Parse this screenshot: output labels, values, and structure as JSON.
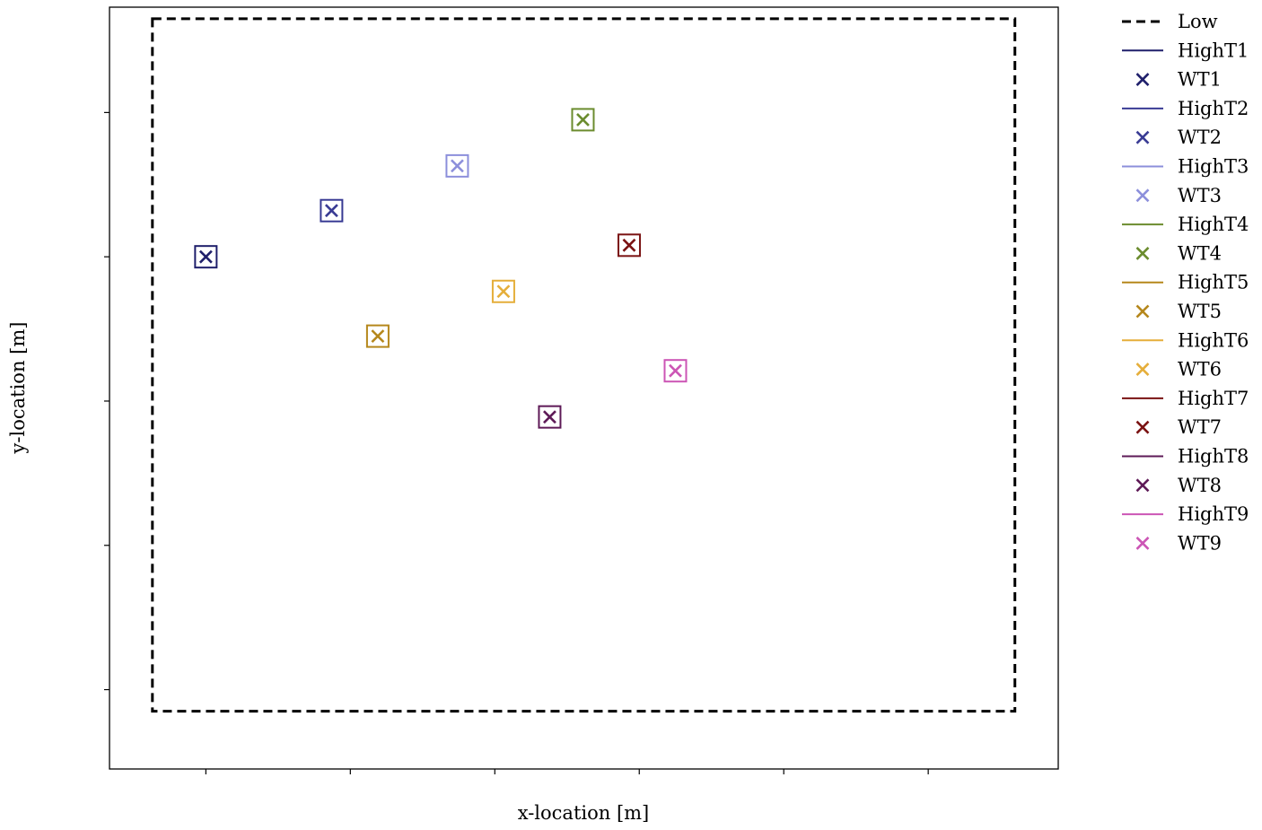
{
  "chart_data": {
    "type": "scatter",
    "title": "",
    "xlabel": "x-location [m]",
    "ylabel": "y-location [m]",
    "xlim": [
      -0.667,
      5.9
    ],
    "ylim": [
      -1.55,
      3.73
    ],
    "xticks": [
      0,
      1,
      2,
      3,
      4,
      5
    ],
    "yticks": [
      -1,
      0,
      1,
      2,
      3
    ],
    "tick_labels_shown": false,
    "grid": false,
    "legend_position": "outside-right",
    "low_domain": {
      "name": "Low",
      "x0": -0.37,
      "x1": 5.6,
      "y0": -1.15,
      "y1": 3.65,
      "color": "#000000",
      "style": "dashed"
    },
    "series": [
      {
        "name": "WT1",
        "domain_name": "HighT1",
        "x": 0.0,
        "y": 2.0,
        "color": "#1f1f6b"
      },
      {
        "name": "WT2",
        "domain_name": "HighT2",
        "x": 0.87,
        "y": 2.32,
        "color": "#393b94"
      },
      {
        "name": "WT3",
        "domain_name": "HighT3",
        "x": 1.74,
        "y": 2.63,
        "color": "#8c8fdb"
      },
      {
        "name": "WT4",
        "domain_name": "HighT4",
        "x": 2.61,
        "y": 2.95,
        "color": "#6b8c2e"
      },
      {
        "name": "WT5",
        "domain_name": "HighT5",
        "x": 1.19,
        "y": 1.45,
        "color": "#b5871b"
      },
      {
        "name": "WT6",
        "domain_name": "HighT6",
        "x": 2.06,
        "y": 1.76,
        "color": "#e5ae3a"
      },
      {
        "name": "WT7",
        "domain_name": "HighT7",
        "x": 2.93,
        "y": 2.08,
        "color": "#7a1212"
      },
      {
        "name": "WT8",
        "domain_name": "HighT8",
        "x": 2.38,
        "y": 0.89,
        "color": "#5e1a57"
      },
      {
        "name": "WT9",
        "domain_name": "HighT9",
        "x": 3.25,
        "y": 1.21,
        "color": "#cc55b5"
      }
    ],
    "legend_entries": [
      {
        "label": "Low",
        "kind": "dashed",
        "color": "#000000"
      },
      {
        "label": "HighT1",
        "kind": "line",
        "color": "#1f1f6b"
      },
      {
        "label": "WT1",
        "kind": "x",
        "color": "#1f1f6b"
      },
      {
        "label": "HighT2",
        "kind": "line",
        "color": "#393b94"
      },
      {
        "label": "WT2",
        "kind": "x",
        "color": "#393b94"
      },
      {
        "label": "HighT3",
        "kind": "line",
        "color": "#8c8fdb"
      },
      {
        "label": "WT3",
        "kind": "x",
        "color": "#8c8fdb"
      },
      {
        "label": "HighT4",
        "kind": "line",
        "color": "#6b8c2e"
      },
      {
        "label": "WT4",
        "kind": "x",
        "color": "#6b8c2e"
      },
      {
        "label": "HighT5",
        "kind": "line",
        "color": "#b5871b"
      },
      {
        "label": "WT5",
        "kind": "x",
        "color": "#b5871b"
      },
      {
        "label": "HighT6",
        "kind": "line",
        "color": "#e5ae3a"
      },
      {
        "label": "WT6",
        "kind": "x",
        "color": "#e5ae3a"
      },
      {
        "label": "HighT7",
        "kind": "line",
        "color": "#7a1212"
      },
      {
        "label": "WT7",
        "kind": "x",
        "color": "#7a1212"
      },
      {
        "label": "HighT8",
        "kind": "line",
        "color": "#5e1a57"
      },
      {
        "label": "WT8",
        "kind": "x",
        "color": "#5e1a57"
      },
      {
        "label": "HighT9",
        "kind": "line",
        "color": "#cc55b5"
      },
      {
        "label": "WT9",
        "kind": "x",
        "color": "#cc55b5"
      }
    ]
  }
}
